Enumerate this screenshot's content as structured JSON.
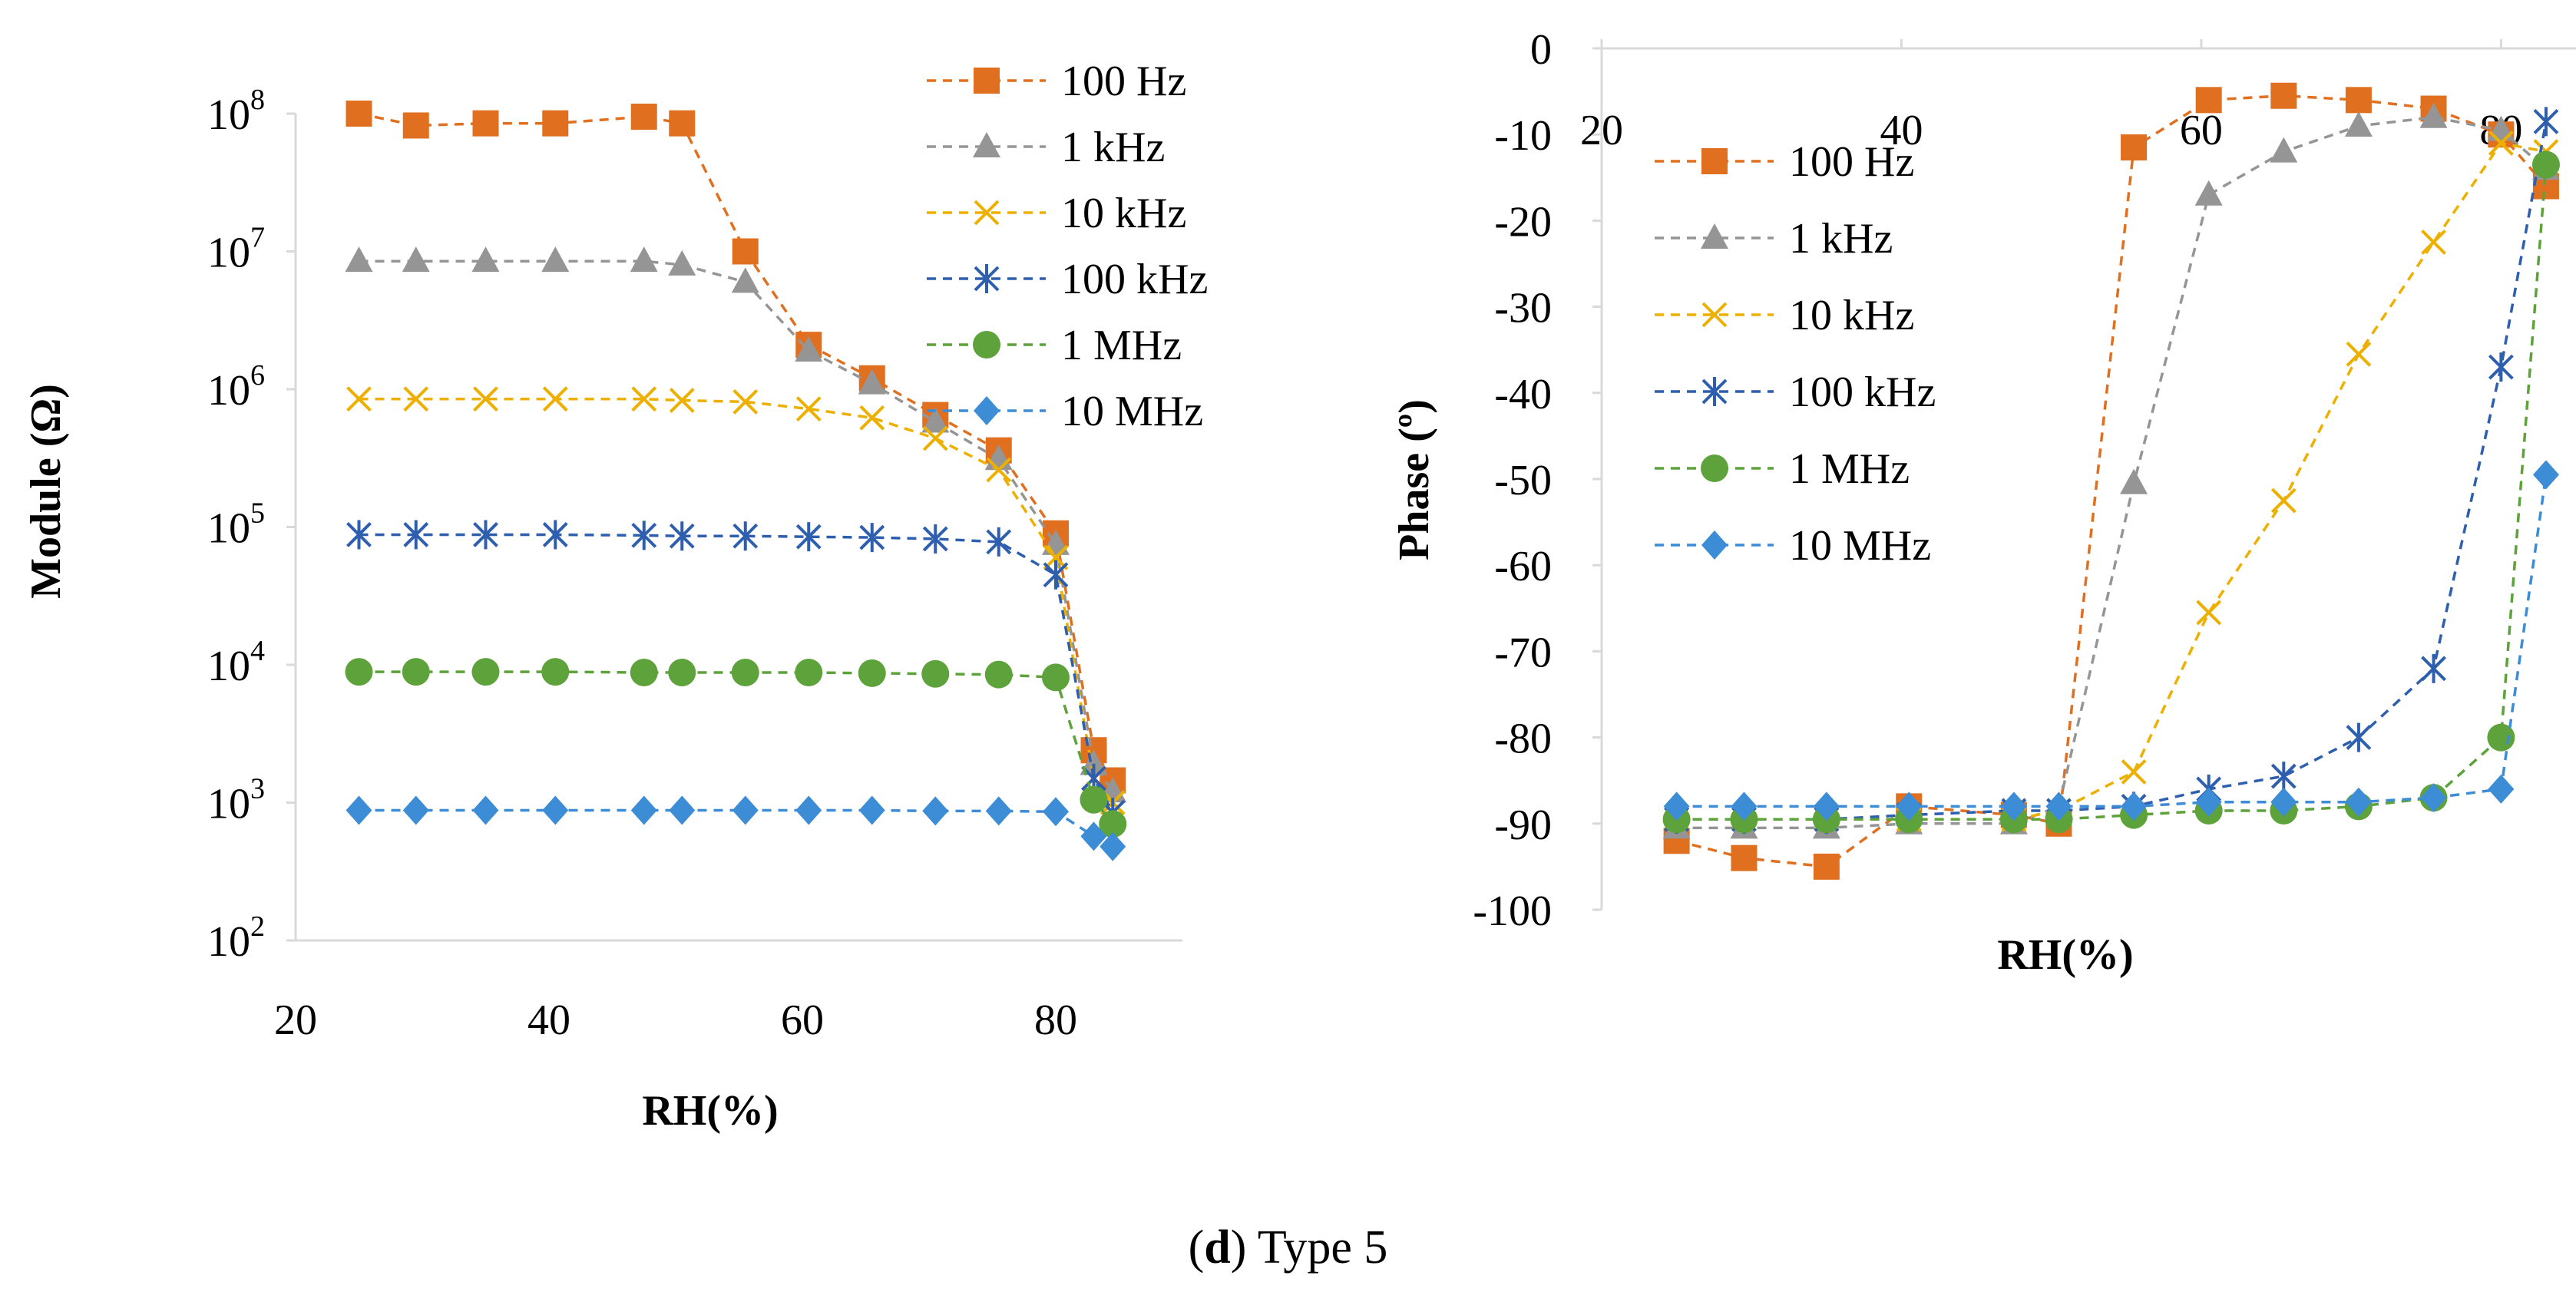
{
  "caption": {
    "label": "d",
    "text": "Type 5",
    "open": "(",
    "close": ")"
  },
  "series_style": {
    "100 Hz": {
      "color": "#E07020",
      "marker": "square"
    },
    "1 kHz": {
      "color": "#959595",
      "marker": "triangle"
    },
    "10 kHz": {
      "color": "#EDB000",
      "marker": "x"
    },
    "100 kHz": {
      "color": "#2E5EAE",
      "marker": "star"
    },
    "1 MHz": {
      "color": "#5DA23A",
      "marker": "circle"
    },
    "10 MHz": {
      "color": "#3D8CD6",
      "marker": "diamond"
    }
  },
  "chart_data": [
    {
      "type": "line",
      "title": "",
      "xlabel": "RH(%)",
      "ylabel": "Module (Ω)",
      "y_scale": "log",
      "xlim": [
        20,
        90
      ],
      "ylim": [
        100,
        100000000
      ],
      "x_ticks": [
        20,
        40,
        60,
        80
      ],
      "y_ticks": [
        {
          "base": "10",
          "exp": "2",
          "value": 100
        },
        {
          "base": "10",
          "exp": "3",
          "value": 1000
        },
        {
          "base": "10",
          "exp": "4",
          "value": 10000
        },
        {
          "base": "10",
          "exp": "5",
          "value": 100000
        },
        {
          "base": "10",
          "exp": "6",
          "value": 1000000
        },
        {
          "base": "10",
          "exp": "7",
          "value": 10000000
        },
        {
          "base": "10",
          "exp": "8",
          "value": 100000000
        }
      ],
      "legend_position": "top-right",
      "line_style": "dashed",
      "series": [
        {
          "name": "100 Hz",
          "x": [
            25,
            29.5,
            35,
            40.5,
            47.5,
            50.5,
            55.5,
            60.5,
            65.5,
            70.5,
            75.5,
            80,
            83,
            84.5
          ],
          "values": [
            100000000,
            82000000,
            85000000,
            85000000,
            95000000,
            85000000,
            10000000,
            2100000,
            1200000,
            650000,
            360000,
            90000,
            2400,
            1450
          ]
        },
        {
          "name": "1 kHz",
          "x": [
            25,
            29.5,
            35,
            40.5,
            47.5,
            50.5,
            55.5,
            60.5,
            65.5,
            70.5,
            75.5,
            80,
            83,
            84.5
          ],
          "values": [
            8500000,
            8500000,
            8500000,
            8500000,
            8500000,
            8000000,
            6000000,
            1900000,
            1100000,
            580000,
            310000,
            75000,
            1900,
            1200
          ]
        },
        {
          "name": "10 kHz",
          "x": [
            25,
            29.5,
            35,
            40.5,
            47.5,
            50.5,
            55.5,
            60.5,
            65.5,
            70.5,
            75.5,
            80,
            83,
            84.5
          ],
          "values": [
            850000,
            850000,
            850000,
            850000,
            850000,
            830000,
            810000,
            720000,
            620000,
            440000,
            260000,
            60000,
            1500,
            1000
          ]
        },
        {
          "name": "100 kHz",
          "x": [
            25,
            29.5,
            35,
            40.5,
            47.5,
            50.5,
            55.5,
            60.5,
            65.5,
            70.5,
            75.5,
            80,
            83,
            84.5
          ],
          "values": [
            88000,
            88000,
            88000,
            88000,
            87000,
            86000,
            86000,
            85000,
            84000,
            82000,
            78000,
            45000,
            1500,
            850
          ]
        },
        {
          "name": "1 MHz",
          "x": [
            25,
            29.5,
            35,
            40.5,
            47.5,
            50.5,
            55.5,
            60.5,
            65.5,
            70.5,
            75.5,
            80,
            83,
            84.5
          ],
          "values": [
            8900,
            8900,
            8900,
            8900,
            8800,
            8800,
            8800,
            8800,
            8700,
            8600,
            8500,
            8100,
            1050,
            700
          ]
        },
        {
          "name": "10 MHz",
          "x": [
            25,
            29.5,
            35,
            40.5,
            47.5,
            50.5,
            55.5,
            60.5,
            65.5,
            70.5,
            75.5,
            80,
            83,
            84.5
          ],
          "values": [
            880,
            880,
            880,
            880,
            880,
            880,
            880,
            880,
            880,
            870,
            870,
            860,
            570,
            480
          ]
        }
      ]
    },
    {
      "type": "line",
      "title": "",
      "xlabel": "RH(%)",
      "ylabel": "Phase (º)",
      "xlim": [
        20,
        85
      ],
      "ylim": [
        -100,
        0
      ],
      "x_ticks": [
        20,
        40,
        60,
        80
      ],
      "y_ticks": [
        0,
        -10,
        -20,
        -30,
        -40,
        -50,
        -60,
        -70,
        -80,
        -90,
        -100
      ],
      "legend_position": "top-left",
      "line_style": "dashed",
      "series": [
        {
          "name": "100 Hz",
          "x": [
            25,
            29.5,
            35,
            40.5,
            47.5,
            50.5,
            55.5,
            60.5,
            65.5,
            70.5,
            75.5,
            80,
            83
          ],
          "values": [
            -92,
            -94,
            -95,
            -88,
            -89,
            -90,
            -11.5,
            -6,
            -5.5,
            -6,
            -7,
            -10,
            -16
          ]
        },
        {
          "name": "1 kHz",
          "x": [
            25,
            29.5,
            35,
            40.5,
            47.5,
            50.5,
            55.5,
            60.5,
            65.5,
            70.5,
            75.5,
            80,
            83
          ],
          "values": [
            -90.5,
            -90.5,
            -90.5,
            -90,
            -90,
            -88,
            -50.5,
            -17,
            -12,
            -9,
            -8,
            -9.5,
            -14
          ]
        },
        {
          "name": "10 kHz",
          "x": [
            25,
            29.5,
            35,
            40.5,
            47.5,
            50.5,
            55.5,
            60.5,
            65.5,
            70.5,
            75.5,
            80,
            83
          ],
          "values": [
            -89.5,
            -89.5,
            -89.5,
            -89.5,
            -89.5,
            -88.5,
            -84,
            -65.5,
            -52.5,
            -35.5,
            -22.5,
            -11,
            -12
          ]
        },
        {
          "name": "100 kHz",
          "x": [
            25,
            29.5,
            35,
            40.5,
            47.5,
            50.5,
            55.5,
            60.5,
            65.5,
            70.5,
            75.5,
            80,
            83
          ],
          "values": [
            -89.5,
            -89.5,
            -89.5,
            -89,
            -88.5,
            -88.5,
            -88,
            -86,
            -84.5,
            -80,
            -72,
            -37,
            -8.5
          ]
        },
        {
          "name": "1 MHz",
          "x": [
            25,
            29.5,
            35,
            40.5,
            47.5,
            50.5,
            55.5,
            60.5,
            65.5,
            70.5,
            75.5,
            80,
            83
          ],
          "values": [
            -89.5,
            -89.5,
            -89.5,
            -89.5,
            -89.5,
            -89.5,
            -89,
            -88.5,
            -88.5,
            -88,
            -87,
            -80,
            -13.5
          ]
        },
        {
          "name": "10 MHz",
          "x": [
            25,
            29.5,
            35,
            40.5,
            47.5,
            50.5,
            55.5,
            60.5,
            65.5,
            70.5,
            75.5,
            80,
            83
          ],
          "values": [
            -88,
            -88,
            -88,
            -88,
            -88,
            -88,
            -88,
            -87.5,
            -87.5,
            -87.5,
            -87,
            -86,
            -49.5
          ]
        }
      ]
    }
  ]
}
